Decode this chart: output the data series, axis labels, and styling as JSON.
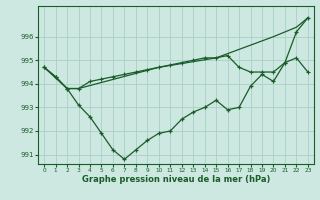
{
  "xlabel": "Graphe pression niveau de la mer (hPa)",
  "background_color": "#cce8e0",
  "grid_color": "#aacfc8",
  "line_color": "#1a5c2a",
  "xlim": [
    -0.5,
    23.5
  ],
  "ylim": [
    990.6,
    997.3
  ],
  "yticks": [
    991,
    992,
    993,
    994,
    995,
    996
  ],
  "xticks": [
    0,
    1,
    2,
    3,
    4,
    5,
    6,
    7,
    8,
    9,
    10,
    11,
    12,
    13,
    14,
    15,
    16,
    17,
    18,
    19,
    20,
    21,
    22,
    23
  ],
  "series1_x": [
    0,
    1,
    2,
    3,
    4,
    5,
    6,
    7,
    8,
    9,
    10,
    11,
    12,
    13,
    14,
    15,
    16,
    17,
    18,
    19,
    20,
    21,
    22,
    23
  ],
  "series1_y": [
    994.7,
    994.3,
    993.8,
    993.8,
    994.1,
    994.2,
    994.3,
    994.4,
    994.5,
    994.6,
    994.7,
    994.8,
    994.9,
    995.0,
    995.1,
    995.1,
    995.2,
    994.7,
    994.5,
    994.5,
    994.5,
    994.9,
    995.1,
    994.5
  ],
  "series2_x": [
    0,
    2,
    3,
    10,
    15,
    20,
    22,
    23
  ],
  "series2_y": [
    994.7,
    993.8,
    993.8,
    994.7,
    995.1,
    996.0,
    996.4,
    996.8
  ],
  "series3_x": [
    0,
    1,
    2,
    3,
    4,
    5,
    6,
    7,
    8,
    9,
    10,
    11,
    12,
    13,
    14,
    15,
    16,
    17,
    18,
    19,
    20,
    21,
    22,
    23
  ],
  "series3_y": [
    994.7,
    994.3,
    993.8,
    993.1,
    992.6,
    991.9,
    991.2,
    990.8,
    991.2,
    991.6,
    991.9,
    992.0,
    992.5,
    992.8,
    993.0,
    993.3,
    992.9,
    993.0,
    993.9,
    994.4,
    994.1,
    994.9,
    996.2,
    996.8
  ]
}
